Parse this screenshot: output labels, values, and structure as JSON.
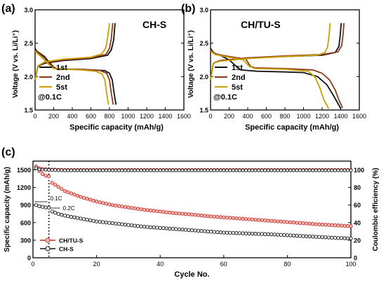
{
  "figure": {
    "panel_labels": [
      "(a)",
      "(b)",
      "(c)"
    ]
  },
  "chart_data": [
    {
      "panel": "(a)",
      "type": "line",
      "title": "CH-S",
      "xlabel": "Specific capacity (mAh/g)",
      "ylabel": "Voltage (V vs. Li/Li⁺)",
      "xlim": [
        0,
        1600
      ],
      "ylim": [
        1.5,
        3.0
      ],
      "xticks": [
        "0",
        "200",
        "400",
        "600",
        "800",
        "1000",
        "1200",
        "1400",
        "1600"
      ],
      "yticks": [
        "1.5",
        "2.0",
        "2.5",
        "3.0"
      ],
      "annotation": "@0.1C",
      "legend_position": "bottom-left",
      "colors": {
        "1st": "#111111",
        "2nd": "#8b3a1a",
        "5st": "#c8a000"
      },
      "series": [
        {
          "name": "1st",
          "discharge": [
            [
              0,
              2.42
            ],
            [
              20,
              2.38
            ],
            [
              50,
              2.35
            ],
            [
              100,
              2.3
            ],
            [
              150,
              2.22
            ],
            [
              200,
              2.14
            ],
            [
              250,
              2.11
            ],
            [
              400,
              2.11
            ],
            [
              600,
              2.1
            ],
            [
              750,
              2.09
            ],
            [
              800,
              2.05
            ],
            [
              830,
              1.95
            ],
            [
              850,
              1.75
            ],
            [
              870,
              1.58
            ]
          ],
          "charge": [
            [
              0,
              1.95
            ],
            [
              30,
              2.15
            ],
            [
              100,
              2.2
            ],
            [
              300,
              2.24
            ],
            [
              600,
              2.27
            ],
            [
              780,
              2.32
            ],
            [
              820,
              2.4
            ],
            [
              845,
              2.55
            ],
            [
              860,
              2.8
            ]
          ]
        },
        {
          "name": "2nd",
          "discharge": [
            [
              0,
              2.4
            ],
            [
              30,
              2.36
            ],
            [
              100,
              2.28
            ],
            [
              150,
              2.2
            ],
            [
              200,
              2.13
            ],
            [
              300,
              2.11
            ],
            [
              500,
              2.11
            ],
            [
              700,
              2.09
            ],
            [
              770,
              2.05
            ],
            [
              800,
              1.95
            ],
            [
              820,
              1.75
            ],
            [
              840,
              1.58
            ]
          ],
          "charge": [
            [
              0,
              1.95
            ],
            [
              30,
              2.15
            ],
            [
              100,
              2.21
            ],
            [
              300,
              2.25
            ],
            [
              600,
              2.28
            ],
            [
              760,
              2.33
            ],
            [
              800,
              2.42
            ],
            [
              820,
              2.57
            ],
            [
              835,
              2.8
            ]
          ]
        },
        {
          "name": "5st",
          "discharge": [
            [
              0,
              2.38
            ],
            [
              30,
              2.34
            ],
            [
              100,
              2.25
            ],
            [
              150,
              2.18
            ],
            [
              200,
              2.12
            ],
            [
              300,
              2.11
            ],
            [
              500,
              2.1
            ],
            [
              650,
              2.08
            ],
            [
              720,
              2.04
            ],
            [
              750,
              1.95
            ],
            [
              770,
              1.75
            ],
            [
              790,
              1.58
            ]
          ],
          "charge": [
            [
              0,
              1.95
            ],
            [
              30,
              2.16
            ],
            [
              100,
              2.22
            ],
            [
              300,
              2.26
            ],
            [
              600,
              2.29
            ],
            [
              720,
              2.34
            ],
            [
              760,
              2.43
            ],
            [
              780,
              2.58
            ],
            [
              800,
              2.8
            ]
          ]
        }
      ]
    },
    {
      "panel": "(b)",
      "type": "line",
      "title": "CH/TU-S",
      "xlabel": "Specific capacity (mAh/g)",
      "ylabel": "Voltage (V vs. Li/Li⁺)",
      "xlim": [
        0,
        1600
      ],
      "ylim": [
        1.5,
        3.0
      ],
      "xticks": [
        "0",
        "200",
        "400",
        "600",
        "800",
        "1000",
        "1200",
        "1400",
        "1600"
      ],
      "yticks": [
        "1.5",
        "2.0",
        "2.5",
        "3.0"
      ],
      "annotation": "@0.1C",
      "legend_position": "bottom-left",
      "colors": {
        "1st": "#111111",
        "2nd": "#8b3a1a",
        "5st": "#c8a000"
      },
      "series": [
        {
          "name": "1st",
          "discharge": [
            [
              0,
              2.42
            ],
            [
              40,
              2.35
            ],
            [
              100,
              2.32
            ],
            [
              200,
              2.25
            ],
            [
              280,
              2.15
            ],
            [
              320,
              2.1
            ],
            [
              500,
              2.08
            ],
            [
              800,
              2.07
            ],
            [
              1000,
              2.06
            ],
            [
              1150,
              2.0
            ],
            [
              1250,
              1.88
            ],
            [
              1320,
              1.72
            ],
            [
              1370,
              1.6
            ],
            [
              1400,
              1.52
            ]
          ],
          "charge": [
            [
              0,
              1.95
            ],
            [
              30,
              2.2
            ],
            [
              100,
              2.24
            ],
            [
              400,
              2.28
            ],
            [
              800,
              2.3
            ],
            [
              1200,
              2.32
            ],
            [
              1340,
              2.36
            ],
            [
              1380,
              2.45
            ],
            [
              1395,
              2.62
            ],
            [
              1405,
              2.8
            ]
          ]
        },
        {
          "name": "2nd",
          "discharge": [
            [
              0,
              2.4
            ],
            [
              50,
              2.34
            ],
            [
              200,
              2.3
            ],
            [
              380,
              2.26
            ],
            [
              430,
              2.15
            ],
            [
              480,
              2.13
            ],
            [
              800,
              2.12
            ],
            [
              1100,
              2.1
            ],
            [
              1200,
              2.05
            ],
            [
              1280,
              1.95
            ],
            [
              1340,
              1.8
            ],
            [
              1380,
              1.65
            ],
            [
              1420,
              1.53
            ]
          ],
          "charge": [
            [
              0,
              1.95
            ],
            [
              30,
              2.2
            ],
            [
              100,
              2.24
            ],
            [
              400,
              2.28
            ],
            [
              800,
              2.31
            ],
            [
              1200,
              2.33
            ],
            [
              1370,
              2.37
            ],
            [
              1410,
              2.46
            ],
            [
              1425,
              2.63
            ],
            [
              1435,
              2.8
            ]
          ]
        },
        {
          "name": "5st",
          "discharge": [
            [
              0,
              2.38
            ],
            [
              50,
              2.33
            ],
            [
              200,
              2.29
            ],
            [
              350,
              2.25
            ],
            [
              420,
              2.15
            ],
            [
              480,
              2.12
            ],
            [
              800,
              2.11
            ],
            [
              1050,
              2.08
            ],
            [
              1120,
              2.0
            ],
            [
              1170,
              1.85
            ],
            [
              1220,
              1.65
            ],
            [
              1270,
              1.52
            ]
          ],
          "charge": [
            [
              0,
              1.95
            ],
            [
              30,
              2.2
            ],
            [
              100,
              2.23
            ],
            [
              400,
              2.27
            ],
            [
              800,
              2.3
            ],
            [
              1150,
              2.32
            ],
            [
              1230,
              2.36
            ],
            [
              1260,
              2.45
            ],
            [
              1275,
              2.62
            ],
            [
              1285,
              2.8
            ]
          ]
        }
      ]
    },
    {
      "panel": "(c)",
      "type": "scatter",
      "xlabel": "Cycle No.",
      "ylabel": "Specific capacity (mAh/g)",
      "ylabel_right": "Coulombic efficiency (%)",
      "xlim": [
        0,
        100
      ],
      "ylim": [
        0,
        1650
      ],
      "ylim_right": [
        0,
        110
      ],
      "xticks": [
        "0",
        "20",
        "40",
        "60",
        "80",
        "100"
      ],
      "yticks": [
        "0",
        "300",
        "600",
        "900",
        "1200",
        "1500"
      ],
      "yticks_right": [
        "0",
        "20",
        "40",
        "60",
        "80",
        "100"
      ],
      "annotations": [
        "0.1C",
        "0.2C"
      ],
      "rate_change_cycle": 5,
      "legend_position": "bottom-left",
      "series": [
        {
          "name": "CH/TU-S",
          "color": "#cc2a2a",
          "capacity_points": [
            [
              1,
              1530
            ],
            [
              2,
              1480
            ],
            [
              3,
              1430
            ],
            [
              4,
              1400
            ],
            [
              5,
              1390
            ],
            [
              6,
              1280
            ],
            [
              8,
              1210
            ],
            [
              10,
              1140
            ],
            [
              15,
              1040
            ],
            [
              20,
              960
            ],
            [
              25,
              900
            ],
            [
              30,
              860
            ],
            [
              35,
              820
            ],
            [
              40,
              790
            ],
            [
              45,
              760
            ],
            [
              50,
              740
            ],
            [
              55,
              710
            ],
            [
              60,
              690
            ],
            [
              65,
              670
            ],
            [
              70,
              650
            ],
            [
              75,
              630
            ],
            [
              80,
              610
            ],
            [
              85,
              590
            ],
            [
              90,
              570
            ],
            [
              95,
              555
            ],
            [
              100,
              540
            ]
          ],
          "efficiency_points": [
            [
              1,
              104
            ],
            [
              2,
              102
            ],
            [
              3,
              101
            ],
            [
              5,
              100.5
            ],
            [
              10,
              100
            ],
            [
              20,
              100
            ],
            [
              40,
              100
            ],
            [
              60,
              100
            ],
            [
              80,
              100
            ],
            [
              100,
              100
            ]
          ]
        },
        {
          "name": "CH-S",
          "color": "#111111",
          "capacity_points": [
            [
              1,
              900
            ],
            [
              2,
              880
            ],
            [
              3,
              870
            ],
            [
              4,
              860
            ],
            [
              5,
              855
            ],
            [
              6,
              790
            ],
            [
              8,
              750
            ],
            [
              10,
              720
            ],
            [
              15,
              670
            ],
            [
              20,
              620
            ],
            [
              25,
              590
            ],
            [
              30,
              560
            ],
            [
              35,
              530
            ],
            [
              40,
              510
            ],
            [
              45,
              490
            ],
            [
              50,
              470
            ],
            [
              55,
              450
            ],
            [
              60,
              430
            ],
            [
              65,
              420
            ],
            [
              70,
              410
            ],
            [
              75,
              400
            ],
            [
              80,
              385
            ],
            [
              85,
              370
            ],
            [
              90,
              355
            ],
            [
              95,
              340
            ],
            [
              100,
              330
            ]
          ],
          "efficiency_points": [
            [
              1,
              102
            ],
            [
              2,
              100.5
            ],
            [
              5,
              100
            ],
            [
              10,
              99.5
            ],
            [
              20,
              99.5
            ],
            [
              40,
              99.5
            ],
            [
              60,
              99.5
            ],
            [
              80,
              99.5
            ],
            [
              100,
              99.5
            ]
          ]
        }
      ]
    }
  ]
}
